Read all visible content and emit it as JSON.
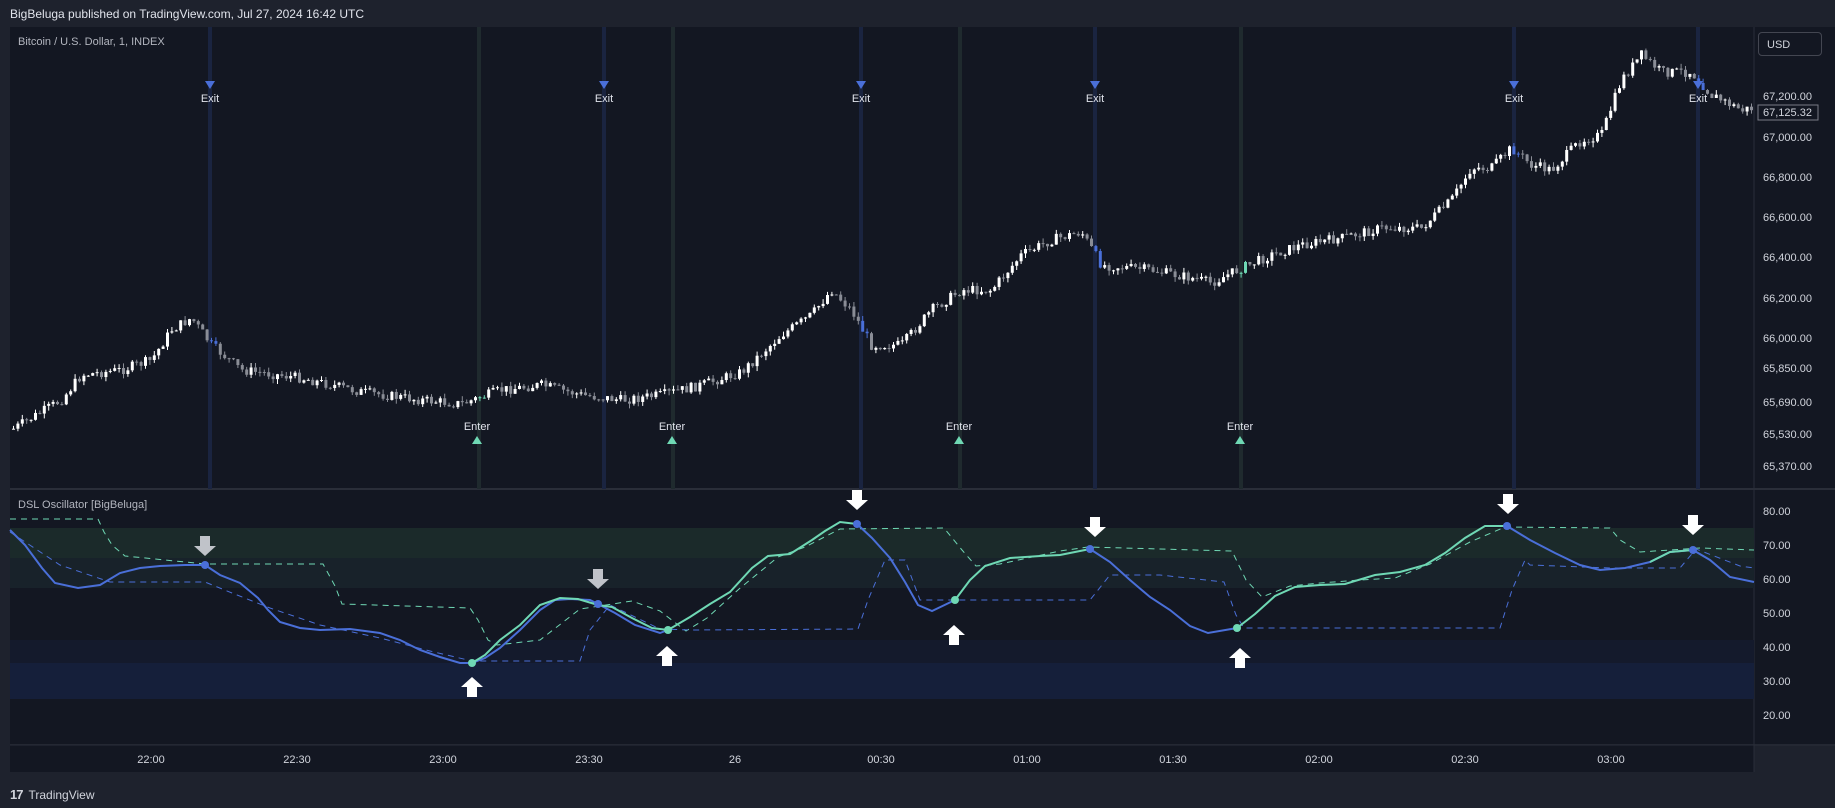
{
  "header": {
    "text": "BigBeluga published on TradingView.com, Jul 27, 2024 16:42 UTC"
  },
  "main_pane": {
    "symbol_label": "Bitcoin / U.S. Dollar, 1, INDEX",
    "currency": "USD",
    "price_labels": [
      "67,200.00",
      "67,000.00",
      "66,800.00",
      "66,600.00",
      "66,400.00",
      "66,200.00",
      "66,000.00",
      "65,850.00",
      "65,690.00",
      "65,530.00",
      "65,370.00"
    ],
    "last_price": "67,125.32",
    "signal_labels": {
      "exit": "Exit",
      "enter": "Enter"
    }
  },
  "oscillator_pane": {
    "title": "DSL Oscillator [BigBeluga]",
    "levels": [
      "80.00",
      "70.00",
      "60.00",
      "50.00",
      "40.00",
      "30.00",
      "20.00"
    ]
  },
  "time_axis": {
    "labels": [
      "22:00",
      "22:30",
      "23:00",
      "23:30",
      "26",
      "00:30",
      "01:00",
      "01:30",
      "02:00",
      "02:30",
      "03:00"
    ]
  },
  "footer": {
    "brand": "TradingView"
  },
  "colors": {
    "background": "#131722",
    "bull_signal": "#6fd8b4",
    "bear_signal": "#4a6fd8",
    "candle": "#ffffff"
  }
}
